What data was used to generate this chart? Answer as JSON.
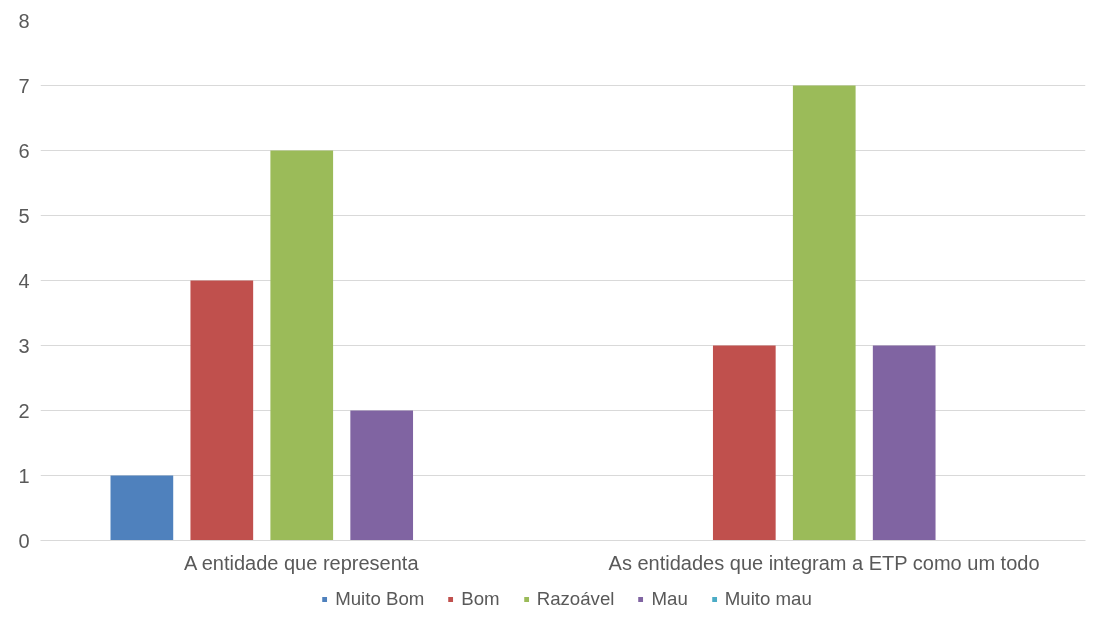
{
  "chart_data": {
    "type": "bar",
    "categories": [
      "A entidade que representa",
      "As entidades que integram a ETP como um todo"
    ],
    "series": [
      {
        "name": "Muito Bom",
        "color": "#4f81bd",
        "values": [
          1,
          0
        ]
      },
      {
        "name": "Bom",
        "color": "#c0504d",
        "values": [
          4,
          3
        ]
      },
      {
        "name": "Razoável",
        "color": "#9bbb59",
        "values": [
          6,
          7
        ]
      },
      {
        "name": "Mau",
        "color": "#8064a2",
        "values": [
          2,
          3
        ]
      },
      {
        "name": "Muito mau",
        "color": "#4bacc6",
        "values": [
          0,
          0
        ]
      }
    ],
    "ylim": [
      0,
      8
    ],
    "yticks": [
      0,
      1,
      2,
      3,
      4,
      5,
      6,
      7,
      8
    ],
    "grid": "y",
    "legend": "bottom"
  }
}
